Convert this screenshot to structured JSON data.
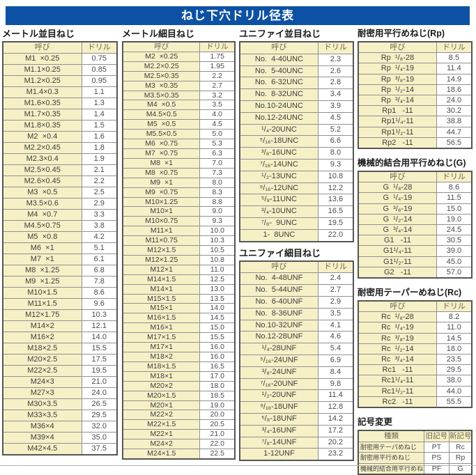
{
  "page_title": "ねじ下穴ドリル径表",
  "colors": {
    "banner_bg": "#0c51a4",
    "banner_text": "#ffffff",
    "cell_bg_cream": "#f6f0c6",
    "cell_bg_white": "#ffffff",
    "border_outer": "#555555",
    "border_inner": "#909090"
  },
  "tables": [
    {
      "title": "メートル並目ねじ",
      "headers": [
        "呼び",
        "ドリル"
      ],
      "rows": [
        [
          "M1  ×0.25",
          "0.75"
        ],
        [
          "M1.1×0.25",
          "0.85"
        ],
        [
          "M1.2×0.25",
          "0.95"
        ],
        [
          "M1.4×0.3",
          "1.1"
        ],
        [
          "M1.6×0.35",
          "1.3"
        ],
        [
          "M1.7×0.35",
          "1.4"
        ],
        [
          "M1.8×0.35",
          "1.5"
        ],
        [
          "M2  ×0.4",
          "1.6"
        ],
        [
          "M2.2×0.45",
          "1.8"
        ],
        [
          "M2.3×0.4",
          "1.9"
        ],
        [
          "M2.5×0.45",
          "2.1"
        ],
        [
          "M2.6×0.45",
          "2.2"
        ],
        [
          "M3  ×0.5",
          "2.5"
        ],
        [
          "M3.5×0.6",
          "2.9"
        ],
        [
          "M4  ×0.7",
          "3.3"
        ],
        [
          "M4.5×0.75",
          "3.8"
        ],
        [
          "M5  ×0.8",
          "4.2"
        ],
        [
          "M6  ×1",
          "5.1"
        ],
        [
          "M7  ×1",
          "6.1"
        ],
        [
          "M8  ×1.25",
          "6.8"
        ],
        [
          "M9  ×1.25",
          "7.8"
        ],
        [
          "M10×1.5",
          "8.6"
        ],
        [
          "M11×1.5",
          "9.6"
        ],
        [
          "M12×1.75",
          "10.3"
        ],
        [
          "M14×2",
          "12.1"
        ],
        [
          "M16×2",
          "14.0"
        ],
        [
          "M18×2.5",
          "15.5"
        ],
        [
          "M20×2.5",
          "17.5"
        ],
        [
          "M22×2.5",
          "19.5"
        ],
        [
          "M24×3",
          "21.0"
        ],
        [
          "M27×3",
          "24.0"
        ],
        [
          "M30×3.5",
          "26.5"
        ],
        [
          "M33×3.5",
          "29.5"
        ],
        [
          "M36×4",
          "32.0"
        ],
        [
          "M39×4",
          "35.0"
        ],
        [
          "M42×4.5",
          "37.5"
        ]
      ]
    },
    {
      "title": "メートル細目ねじ",
      "headers": [
        "呼び",
        "ドリル"
      ],
      "rows": [
        [
          "M2  ×0.25",
          "1.75"
        ],
        [
          "M2.2×0.25",
          "1.95"
        ],
        [
          "M2.5×0.35",
          "2.2"
        ],
        [
          "M3  ×0.35",
          "2.7"
        ],
        [
          "M3.5×0.35",
          "3.2"
        ],
        [
          "M4  ×0.5",
          "3.5"
        ],
        [
          "M4.5×0.5",
          "4.0"
        ],
        [
          "M5  ×0.5",
          "4.5"
        ],
        [
          "M5.5×0.5",
          "5.0"
        ],
        [
          "M6  ×0.75",
          "5.3"
        ],
        [
          "M7  ×0.75",
          "6.3"
        ],
        [
          "M8  ×1",
          "7.0"
        ],
        [
          "M8  ×0.75",
          "7.3"
        ],
        [
          "M9  ×1",
          "8.0"
        ],
        [
          "M9  ×0.75",
          "8.3"
        ],
        [
          "M10×1.25",
          "8.8"
        ],
        [
          "M10×1",
          "9.0"
        ],
        [
          "M10×0.75",
          "9.3"
        ],
        [
          "M11×1",
          "10.0"
        ],
        [
          "M11×0.75",
          "10.3"
        ],
        [
          "M12×1.5",
          "10.5"
        ],
        [
          "M12×1.25",
          "10.8"
        ],
        [
          "M12×1",
          "11.0"
        ],
        [
          "M14×1.5",
          "12.5"
        ],
        [
          "M14×1",
          "13.0"
        ],
        [
          "M15×1.5",
          "13.5"
        ],
        [
          "M15×1",
          "14.0"
        ],
        [
          "M16×1.5",
          "14.5"
        ],
        [
          "M16×1",
          "15.0"
        ],
        [
          "M17×1.5",
          "15.5"
        ],
        [
          "M17×1",
          "16.0"
        ],
        [
          "M18×2",
          "16.0"
        ],
        [
          "M18×1.5",
          "16.5"
        ],
        [
          "M18×1",
          "17.0"
        ],
        [
          "M20×2",
          "18.0"
        ],
        [
          "M20×1.5",
          "18.5"
        ],
        [
          "M20×1",
          "19.0"
        ],
        [
          "M22×2",
          "20.0"
        ],
        [
          "M22×1.5",
          "20.5"
        ],
        [
          "M22×1",
          "21.0"
        ],
        [
          "M24×2",
          "22.0"
        ],
        [
          "M24×1.5",
          "22.5"
        ]
      ]
    },
    {
      "title": "ユニファイ並目ねじ",
      "headers": [
        "呼び",
        "ドリル"
      ],
      "rows": [
        [
          "No.  4-40UNC",
          "2.3"
        ],
        [
          "No.  5-40UNC",
          "2.6"
        ],
        [
          "No.  6-32UNC",
          "2.8"
        ],
        [
          "No.  8-32UNC",
          "3.4"
        ],
        [
          "No.10-24UNC",
          "3.9"
        ],
        [
          "No.12-24UNC",
          "4.5"
        ],
        [
          "¹/₄-20UNC",
          "5.2"
        ],
        [
          "⁵/₁₆-18UNC",
          "6.6"
        ],
        [
          "³/₈-16UNC",
          "8.0"
        ],
        [
          "⁷/₁₆-14UNC",
          "9.3"
        ],
        [
          "¹/₂-13UNC",
          "10.8"
        ],
        [
          "⁹/₁₆-12UNC",
          "12.2"
        ],
        [
          "⁵/₈-11UNC",
          "13.6"
        ],
        [
          "³/₄-10UNC",
          "16.5"
        ],
        [
          "⁷/₈-  9UNC",
          "19.5"
        ],
        [
          "1-  8UNC",
          "22.0"
        ]
      ]
    },
    {
      "title": "ユニファイ細目ねじ",
      "headers": [
        "呼び",
        "ドリル"
      ],
      "rows": [
        [
          "No.  4-48UNF",
          "2.4"
        ],
        [
          "No.  5-44UNF",
          "2.7"
        ],
        [
          "No.  6-40UNF",
          "2.9"
        ],
        [
          "No.  8-36UNF",
          "3.5"
        ],
        [
          "No.10-32UNF",
          "4.1"
        ],
        [
          "No.12-28UNF",
          "4.6"
        ],
        [
          "¹/₄-28UNF",
          "5.4"
        ],
        [
          "⁵/₁₆-24UNF",
          "6.9"
        ],
        [
          "³/₈-24UNF",
          "8.4"
        ],
        [
          "⁷/₁₆-20UNF",
          "9.8"
        ],
        [
          "¹/₂-20UNF",
          "11.4"
        ],
        [
          "⁹/₁₆-18UNF",
          "12.8"
        ],
        [
          "⁵/₈-18UNF",
          "14.2"
        ],
        [
          "³/₄-16UNF",
          "17.2"
        ],
        [
          "⁷/₈-14UNF",
          "20.2"
        ],
        [
          "1-12UNF",
          "23.2"
        ]
      ]
    },
    {
      "title": "耐密用平行めねじ(Rp)",
      "headers": [
        "呼び",
        "ドリル"
      ],
      "rows": [
        [
          "Rp  ¹/₈-28",
          "8.5"
        ],
        [
          "Rp  ¹/₄-19",
          "11.4"
        ],
        [
          "Rp  ³/₈-19",
          "14.9"
        ],
        [
          "Rp  ¹/₂-14",
          "18.6"
        ],
        [
          "Rp  ³/₄-14",
          "24.0"
        ],
        [
          "Rp1   -11",
          "30.2"
        ],
        [
          "Rp1¹/₄-11",
          "38.8"
        ],
        [
          "Rp1¹/₂-11",
          "44.7"
        ],
        [
          "Rp2   -11",
          "56.5"
        ]
      ]
    },
    {
      "title": "機械的結合用平行めねじ(G)",
      "headers": [
        "呼び",
        "ドリル"
      ],
      "rows": [
        [
          "G  ¹/₈-28",
          "8.6"
        ],
        [
          "G  ¹/₄-19",
          "11.5"
        ],
        [
          "G  ³/₈-19",
          "15.0"
        ],
        [
          "G  ¹/₂-14",
          "19.0"
        ],
        [
          "G  ³/₄-14",
          "24.5"
        ],
        [
          "G1   -11",
          "30.5"
        ],
        [
          "G1¹/₄-11",
          "39.0"
        ],
        [
          "G1¹/₂-11",
          "45.0"
        ],
        [
          "G2   -11",
          "57.0"
        ]
      ]
    },
    {
      "title": "耐密用テーパーめねじ(Rc)",
      "headers": [
        "呼び",
        "ドリル"
      ],
      "rows": [
        [
          "Rc  ¹/₈-28",
          "8.2"
        ],
        [
          "Rc  ¹/₄-19",
          "11.0"
        ],
        [
          "Rc  ³/₈-19",
          "14.5"
        ],
        [
          "Rc  ¹/₂-14",
          "18.0"
        ],
        [
          "Rc  ³/₄-14",
          "23.5"
        ],
        [
          "Rc1   -11",
          "29.5"
        ],
        [
          "Rc1¹/₄-11",
          "38.0"
        ],
        [
          "Rc1¹/₂-11",
          "44.0"
        ],
        [
          "Rc2   -11",
          "55.5"
        ]
      ]
    },
    {
      "title": "記号変更",
      "headers": [
        "種類",
        "旧記号",
        "新記号"
      ],
      "rows": [
        [
          "耐密用テーパめねじ",
          "PT",
          "Rc"
        ],
        [
          "耐密用平行めねじ",
          "PS",
          "Rp"
        ],
        [
          "機械的結合用平行めねじ",
          "PF",
          "G"
        ]
      ]
    }
  ]
}
